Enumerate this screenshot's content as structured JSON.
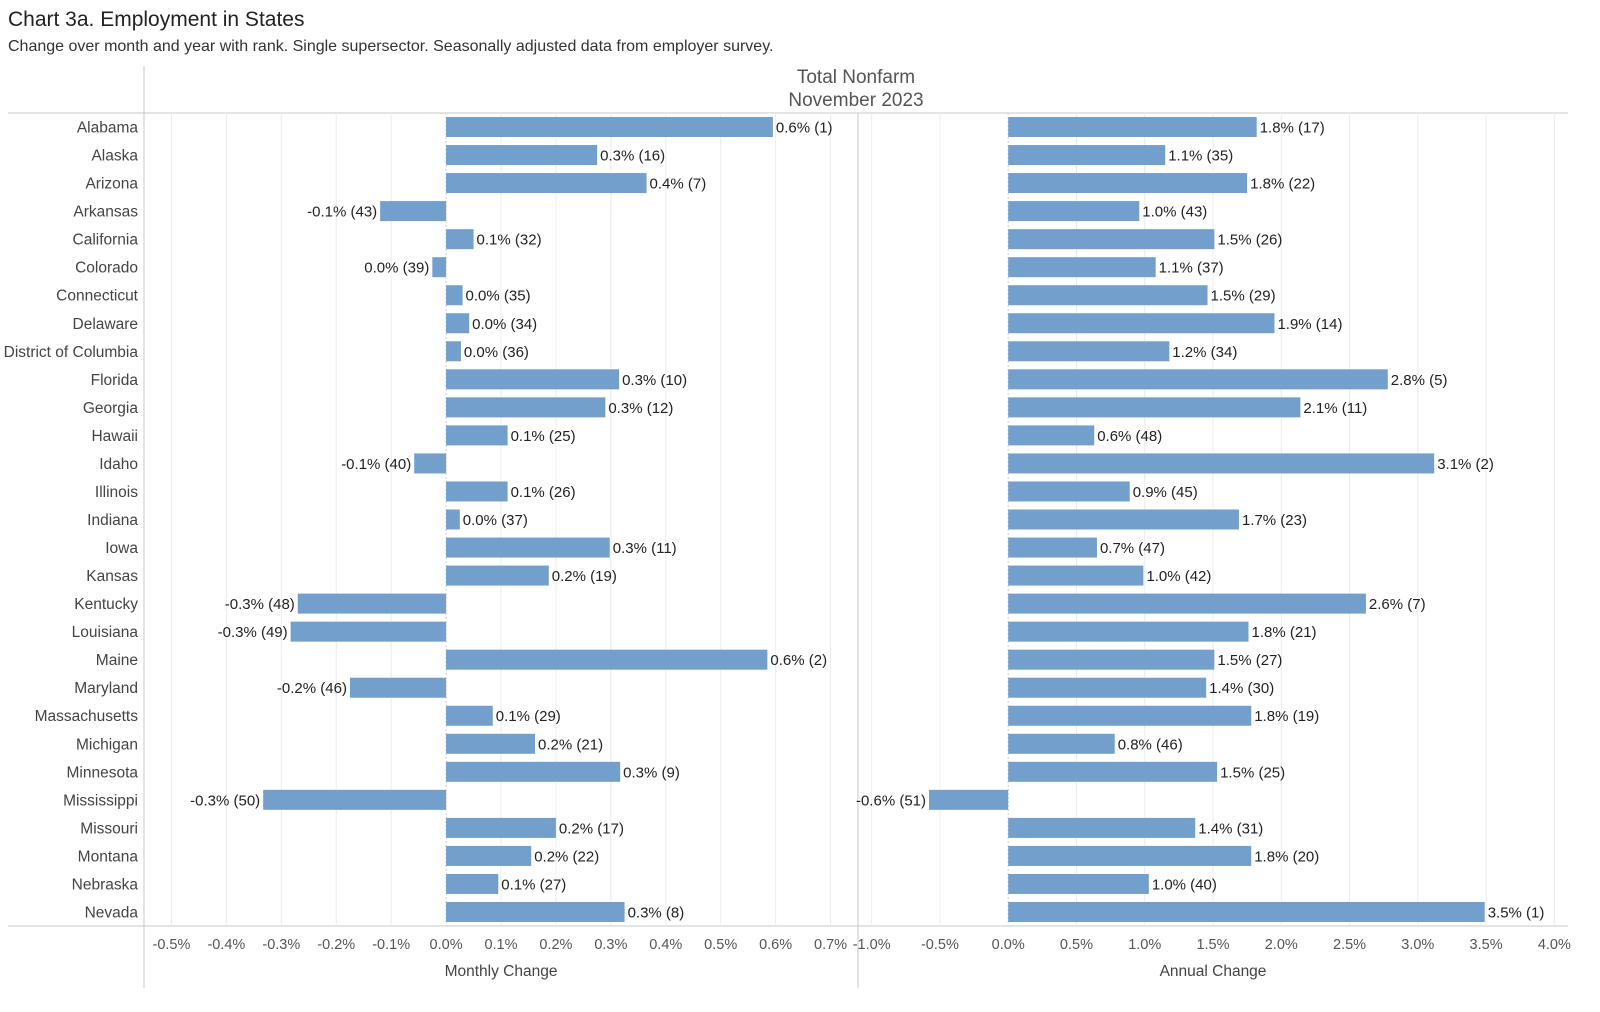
{
  "title": "Chart 3a. Employment in States",
  "subtitle": "Change over month and year with rank. Single supersector. Seasonally adjusted data from employer survey.",
  "colors": {
    "bar": "#729fcb",
    "grid": "#ececec",
    "axis": "#c8c8c8",
    "zero": "#cfcfcf"
  },
  "chart_data": {
    "type": "bar",
    "orientation": "horizontal",
    "header": [
      "Total Nonfarm",
      "November 2023"
    ],
    "categories": [
      "Alabama",
      "Alaska",
      "Arizona",
      "Arkansas",
      "California",
      "Colorado",
      "Connecticut",
      "Delaware",
      "District of Columbia",
      "Florida",
      "Georgia",
      "Hawaii",
      "Idaho",
      "Illinois",
      "Indiana",
      "Iowa",
      "Kansas",
      "Kentucky",
      "Louisiana",
      "Maine",
      "Maryland",
      "Massachusetts",
      "Michigan",
      "Minnesota",
      "Mississippi",
      "Missouri",
      "Montana",
      "Nebraska",
      "Nevada"
    ],
    "panels": [
      {
        "xlabel": "Monthly Change",
        "xlim": [
          -0.55,
          0.75
        ],
        "ticks": [
          -0.5,
          -0.4,
          -0.3,
          -0.2,
          -0.1,
          0.0,
          0.1,
          0.2,
          0.3,
          0.4,
          0.5,
          0.6,
          0.7
        ],
        "tick_labels": [
          "-0.5%",
          "-0.4%",
          "-0.3%",
          "-0.2%",
          "-0.1%",
          "0.0%",
          "0.1%",
          "0.2%",
          "0.3%",
          "0.4%",
          "0.5%",
          "0.6%",
          "0.7%"
        ],
        "values": [
          0.595,
          0.275,
          0.365,
          -0.12,
          0.05,
          -0.025,
          0.03,
          0.042,
          0.027,
          0.315,
          0.29,
          0.112,
          -0.058,
          0.112,
          0.025,
          0.298,
          0.187,
          -0.27,
          -0.283,
          0.585,
          -0.175,
          0.085,
          0.162,
          0.317,
          -0.333,
          0.2,
          0.155,
          0.095,
          0.325
        ],
        "labels": [
          "0.6% (1)",
          "0.3% (16)",
          "0.4% (7)",
          "-0.1% (43)",
          "0.1% (32)",
          "0.0% (39)",
          "0.0% (35)",
          "0.0% (34)",
          "0.0% (36)",
          "0.3% (10)",
          "0.3% (12)",
          "0.1% (25)",
          "-0.1% (40)",
          "0.1% (26)",
          "0.0% (37)",
          "0.3% (11)",
          "0.2% (19)",
          "-0.3% (48)",
          "-0.3% (49)",
          "0.6% (2)",
          "-0.2% (46)",
          "0.1% (29)",
          "0.2% (21)",
          "0.3% (9)",
          "-0.3% (50)",
          "0.2% (17)",
          "0.2% (22)",
          "0.1% (27)",
          "0.3% (8)"
        ]
      },
      {
        "xlabel": "Annual Change",
        "xlim": [
          -1.1,
          4.1
        ],
        "ticks": [
          -1.0,
          -0.5,
          0.0,
          0.5,
          1.0,
          1.5,
          2.0,
          2.5,
          3.0,
          3.5,
          4.0
        ],
        "tick_labels": [
          "-1.0%",
          "-0.5%",
          "0.0%",
          "0.5%",
          "1.0%",
          "1.5%",
          "2.0%",
          "2.5%",
          "3.0%",
          "3.5%",
          "4.0%"
        ],
        "values": [
          1.82,
          1.15,
          1.75,
          0.96,
          1.51,
          1.08,
          1.46,
          1.95,
          1.18,
          2.78,
          2.14,
          0.63,
          3.12,
          0.89,
          1.69,
          0.65,
          0.99,
          2.62,
          1.76,
          1.51,
          1.45,
          1.78,
          0.78,
          1.53,
          -0.58,
          1.37,
          1.78,
          1.03,
          3.49
        ],
        "labels": [
          "1.8% (17)",
          "1.1% (35)",
          "1.8% (22)",
          "1.0% (43)",
          "1.5% (26)",
          "1.1% (37)",
          "1.5% (29)",
          "1.9% (14)",
          "1.2% (34)",
          "2.8% (5)",
          "2.1% (11)",
          "0.6% (48)",
          "3.1% (2)",
          "0.9% (45)",
          "1.7% (23)",
          "0.7% (47)",
          "1.0% (42)",
          "2.6% (7)",
          "1.8% (21)",
          "1.5% (27)",
          "1.4% (30)",
          "1.8% (19)",
          "0.8% (46)",
          "1.5% (25)",
          "-0.6% (51)",
          "1.4% (31)",
          "1.8% (20)",
          "1.0% (40)",
          "3.5% (1)"
        ]
      }
    ],
    "grid": true,
    "legend": "none"
  }
}
